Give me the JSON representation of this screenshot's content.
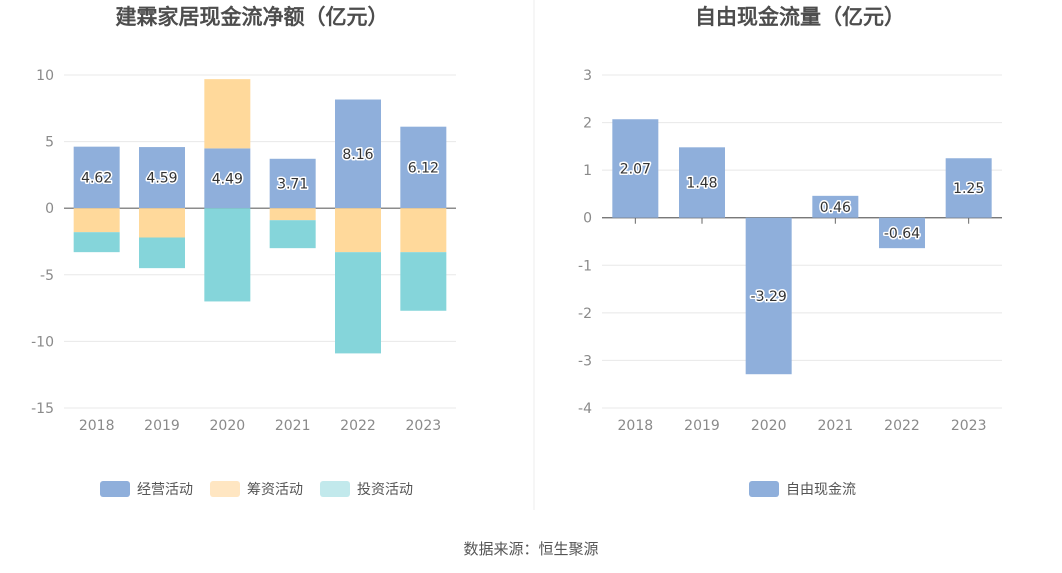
{
  "source": "数据来源：恒生聚源",
  "colors": {
    "operating": "#8fafdb",
    "financing": "#ffd99b",
    "investing": "#85d5da",
    "free_cash_flow": "#8fafdb",
    "legend_financing": "#ffe6c2",
    "legend_investing": "#c2e9ec",
    "grid": "#e8e8e8",
    "axis": "#666666"
  },
  "chart_data": [
    {
      "type": "bar",
      "stacked": true,
      "title": "建霖家居现金流净额（亿元）",
      "categories": [
        "2018",
        "2019",
        "2020",
        "2021",
        "2022",
        "2023"
      ],
      "series": [
        {
          "name": "经营活动",
          "values": [
            4.62,
            4.59,
            4.49,
            3.71,
            8.16,
            6.12
          ],
          "labels": [
            "4.62",
            "4.59",
            "4.49",
            "3.71",
            "8.16",
            "6.12"
          ]
        },
        {
          "name": "筹资活动",
          "values": [
            -1.8,
            -2.2,
            5.2,
            -0.9,
            -3.3,
            -3.3
          ]
        },
        {
          "name": "投资活动",
          "values": [
            -1.5,
            -2.3,
            -7.0,
            -2.1,
            -7.6,
            -4.4
          ]
        }
      ],
      "ylim": [
        -15,
        10
      ],
      "yticks": [
        "10",
        "5",
        "0",
        "-5",
        "-10",
        "-15"
      ],
      "legend_position": "bottom",
      "grid": true
    },
    {
      "type": "bar",
      "title": "自由现金流量（亿元）",
      "categories": [
        "2018",
        "2019",
        "2020",
        "2021",
        "2022",
        "2023"
      ],
      "series": [
        {
          "name": "自由现金流",
          "values": [
            2.07,
            1.48,
            -3.29,
            0.46,
            -0.64,
            1.25
          ],
          "labels": [
            "2.07",
            "1.48",
            "-3.29",
            "0.46",
            "-0.64",
            "1.25"
          ]
        }
      ],
      "ylim": [
        -4,
        3
      ],
      "yticks": [
        "3",
        "2",
        "1",
        "0",
        "-1",
        "-2",
        "-3",
        "-4"
      ],
      "legend_position": "bottom",
      "grid": true
    }
  ]
}
